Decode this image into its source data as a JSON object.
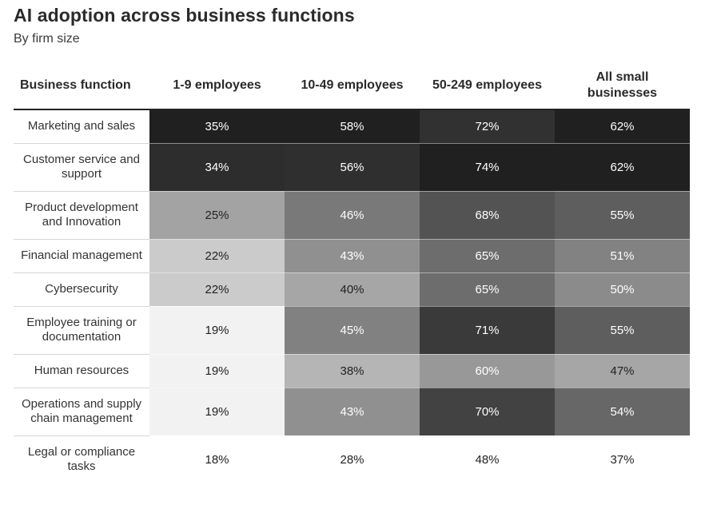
{
  "title": "AI adoption across business functions",
  "subtitle": "By firm size",
  "chart_data": {
    "type": "heatmap",
    "title": "AI adoption across business functions",
    "subtitle": "By firm size",
    "row_header": "Business function",
    "columns": [
      "1-9 employees",
      "10-49 employees",
      "50-249 employees",
      "All small businesses"
    ],
    "value_suffix": "%",
    "rows": [
      {
        "label": "Marketing and sales",
        "values": [
          35,
          58,
          72,
          62
        ]
      },
      {
        "label": "Customer service and support",
        "values": [
          34,
          56,
          74,
          62
        ]
      },
      {
        "label": "Product development and Innovation",
        "values": [
          25,
          46,
          68,
          55
        ]
      },
      {
        "label": "Financial management",
        "values": [
          22,
          43,
          65,
          51
        ]
      },
      {
        "label": "Cybersecurity",
        "values": [
          22,
          40,
          65,
          50
        ]
      },
      {
        "label": "Employee training or documentation",
        "values": [
          19,
          45,
          71,
          55
        ]
      },
      {
        "label": "Human resources",
        "values": [
          19,
          38,
          60,
          47
        ]
      },
      {
        "label": "Operations and supply chain management",
        "values": [
          19,
          43,
          70,
          54
        ]
      },
      {
        "label": "Legal or compliance tasks",
        "values": [
          18,
          28,
          48,
          37
        ]
      }
    ],
    "color_scale": "grayscale, per column: lowest value lightest, highest value darkest"
  }
}
